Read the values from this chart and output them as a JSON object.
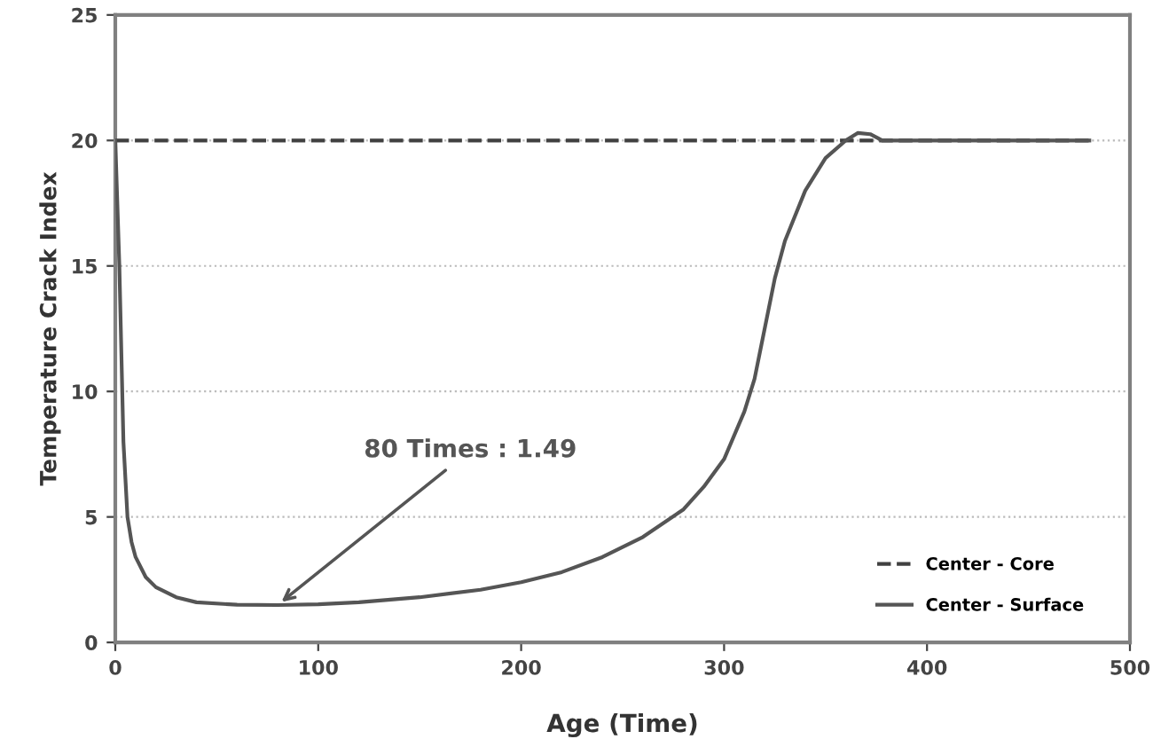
{
  "chart_data": {
    "type": "line",
    "xlabel": "Age (Time)",
    "ylabel": "Temperature Crack Index",
    "xlim": [
      0,
      500
    ],
    "ylim": [
      0,
      25
    ],
    "xticks": [
      0,
      100,
      200,
      300,
      400,
      500
    ],
    "yticks": [
      0,
      5,
      10,
      15,
      20,
      25
    ],
    "grid": "y",
    "legend": "bottom right",
    "marker": "none",
    "annotations": [
      {
        "text": "80 Times : 1.49",
        "x": 80,
        "y": 1.49
      }
    ],
    "series": [
      {
        "name": "Center - Core",
        "color": "#404040",
        "line_style": "dashed",
        "x": [
          0,
          480
        ],
        "values": [
          20,
          20
        ]
      },
      {
        "name": "Center - Surface",
        "color": "#555555",
        "line_style": "solid",
        "x": [
          0,
          2,
          4,
          6,
          8,
          10,
          15,
          20,
          30,
          40,
          60,
          80,
          100,
          120,
          150,
          180,
          200,
          220,
          240,
          260,
          280,
          290,
          300,
          310,
          315,
          320,
          325,
          330,
          340,
          350,
          360,
          366,
          372,
          378,
          400,
          480
        ],
        "values": [
          20,
          15,
          8,
          5,
          4,
          3.4,
          2.6,
          2.2,
          1.8,
          1.6,
          1.5,
          1.49,
          1.52,
          1.6,
          1.8,
          2.1,
          2.4,
          2.8,
          3.4,
          4.2,
          5.3,
          6.2,
          7.3,
          9.2,
          10.5,
          12.5,
          14.5,
          16,
          18,
          19.3,
          20,
          20.3,
          20.25,
          20,
          20,
          20
        ]
      }
    ]
  }
}
